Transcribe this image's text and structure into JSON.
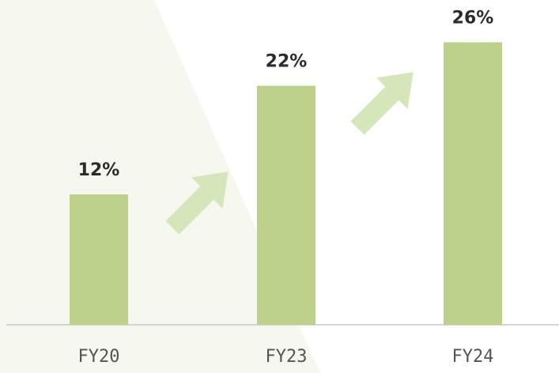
{
  "chart_data": {
    "type": "bar",
    "categories": [
      "FY20",
      "FY23",
      "FY24"
    ],
    "values": [
      12,
      22,
      26
    ],
    "value_labels": [
      "12%",
      "22%",
      "26%"
    ],
    "color": "#bdd18b"
  }
}
